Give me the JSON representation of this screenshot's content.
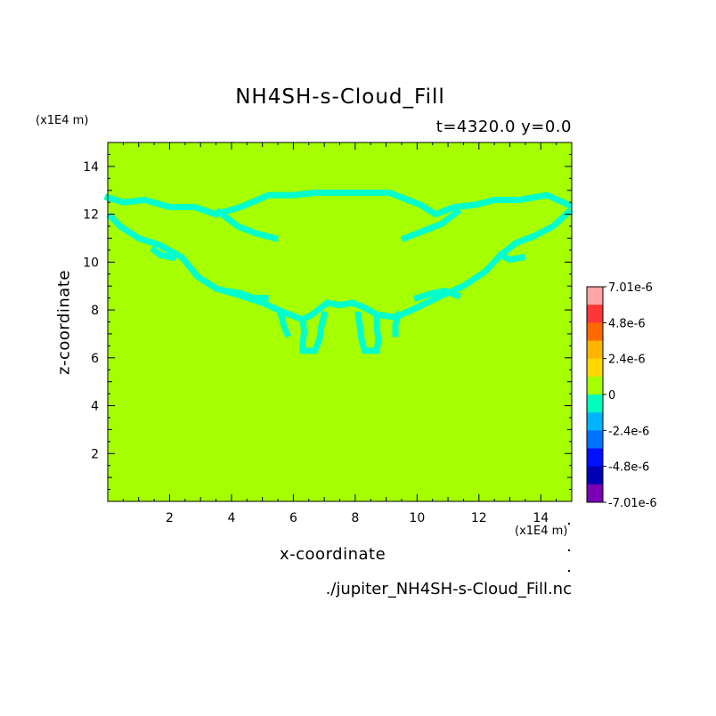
{
  "chart_data": {
    "type": "heatmap",
    "title": "NH4SH-s-Cloud_Fill",
    "subtitle": "t=4320.0 y=0.0",
    "xlabel": "x-coordinate",
    "ylabel": "z-coordinate",
    "x_unit": "(x1E4 m)",
    "y_unit": "(x1E4 m)",
    "xlim": [
      0,
      15
    ],
    "ylim": [
      0,
      15
    ],
    "x_ticks": [
      2,
      4,
      6,
      8,
      10,
      12,
      14
    ],
    "y_ticks": [
      2,
      4,
      6,
      8,
      10,
      12,
      14
    ],
    "background_value": 0,
    "feature_value": -1.2e-06,
    "feature_polylines": [
      [
        [
          0,
          12.7
        ],
        [
          0.5,
          12.5
        ],
        [
          1.2,
          12.6
        ],
        [
          2,
          12.3
        ],
        [
          2.8,
          12.3
        ],
        [
          3.5,
          12.0
        ],
        [
          4.3,
          12.3
        ],
        [
          5.2,
          12.8
        ],
        [
          6,
          12.8
        ],
        [
          6.7,
          12.9
        ],
        [
          7.5,
          12.9
        ],
        [
          8.3,
          12.9
        ],
        [
          9.1,
          12.9
        ],
        [
          10.1,
          12.4
        ],
        [
          10.6,
          12.0
        ],
        [
          11.2,
          12.3
        ],
        [
          11.9,
          12.4
        ],
        [
          12.5,
          12.6
        ],
        [
          13.3,
          12.6
        ],
        [
          14.2,
          12.8
        ],
        [
          14.9,
          12.4
        ]
      ],
      [
        [
          0.1,
          11.9
        ],
        [
          0.4,
          11.5
        ],
        [
          1,
          11.0
        ],
        [
          1.7,
          10.7
        ],
        [
          2.4,
          10.2
        ],
        [
          2.9,
          9.4
        ],
        [
          3.5,
          8.9
        ],
        [
          4.3,
          8.6
        ],
        [
          5.0,
          8.3
        ],
        [
          5.7,
          7.9
        ],
        [
          6.3,
          7.6
        ],
        [
          6.6,
          7.8
        ],
        [
          7.1,
          8.3
        ],
        [
          7.5,
          8.2
        ],
        [
          7.9,
          8.3
        ],
        [
          8.3,
          8.1
        ],
        [
          8.7,
          7.8
        ],
        [
          9.3,
          7.7
        ],
        [
          10,
          8.1
        ],
        [
          10.8,
          8.6
        ],
        [
          11.5,
          9.0
        ],
        [
          12.2,
          9.6
        ],
        [
          12.7,
          10.3
        ],
        [
          13.2,
          10.8
        ],
        [
          13.8,
          11.1
        ],
        [
          14.4,
          11.5
        ],
        [
          14.9,
          12.1
        ]
      ],
      [
        [
          3.6,
          12.1
        ],
        [
          4.2,
          11.5
        ],
        [
          4.8,
          11.2
        ],
        [
          5.4,
          11.0
        ]
      ],
      [
        [
          9.6,
          11.0
        ],
        [
          10.2,
          11.3
        ],
        [
          10.8,
          11.6
        ],
        [
          11.3,
          12.1
        ]
      ],
      [
        [
          3.8,
          8.8
        ],
        [
          4.3,
          8.7
        ],
        [
          4.7,
          8.5
        ],
        [
          5.1,
          8.5
        ]
      ],
      [
        [
          10.0,
          8.5
        ],
        [
          10.5,
          8.7
        ],
        [
          10.9,
          8.8
        ],
        [
          11.3,
          8.6
        ]
      ],
      [
        [
          6.3,
          7.6
        ],
        [
          6.35,
          7.1
        ],
        [
          6.3,
          6.6
        ],
        [
          6.3,
          6.3
        ],
        [
          6.7,
          6.3
        ],
        [
          6.85,
          6.8
        ],
        [
          6.9,
          7.3
        ],
        [
          7.0,
          7.8
        ]
      ],
      [
        [
          8.1,
          7.8
        ],
        [
          8.15,
          7.3
        ],
        [
          8.2,
          6.8
        ],
        [
          8.3,
          6.3
        ],
        [
          8.7,
          6.3
        ],
        [
          8.75,
          6.8
        ],
        [
          8.7,
          7.2
        ],
        [
          8.7,
          7.8
        ]
      ],
      [
        [
          5.6,
          7.8
        ],
        [
          5.7,
          7.3
        ],
        [
          5.8,
          7.0
        ]
      ],
      [
        [
          9.4,
          7.8
        ],
        [
          9.3,
          7.4
        ],
        [
          9.3,
          7.0
        ]
      ],
      [
        [
          1.5,
          10.5
        ],
        [
          1.7,
          10.3
        ],
        [
          2.1,
          10.2
        ]
      ],
      [
        [
          12.7,
          10.3
        ],
        [
          13.0,
          10.1
        ],
        [
          13.4,
          10.2
        ]
      ]
    ],
    "colorbar": {
      "ticks": [
        "7.01e-6",
        "4.8e-6",
        "2.4e-6",
        "0",
        "-2.4e-6",
        "-4.8e-6",
        "-7.01e-6"
      ],
      "colors": [
        "#ffa5a5",
        "#ff3636",
        "#ff6a00",
        "#ffb400",
        "#ffd800",
        "#a5ff00",
        "#00ffbe",
        "#00b4ff",
        "#0072ff",
        "#0010ff",
        "#0000b4",
        "#7a00b4"
      ]
    },
    "colors": {
      "field": "#a5ff00",
      "feature": "#00ffcc"
    },
    "source": "./jupiter_NH4SH-s-Cloud_Fill.nc"
  }
}
